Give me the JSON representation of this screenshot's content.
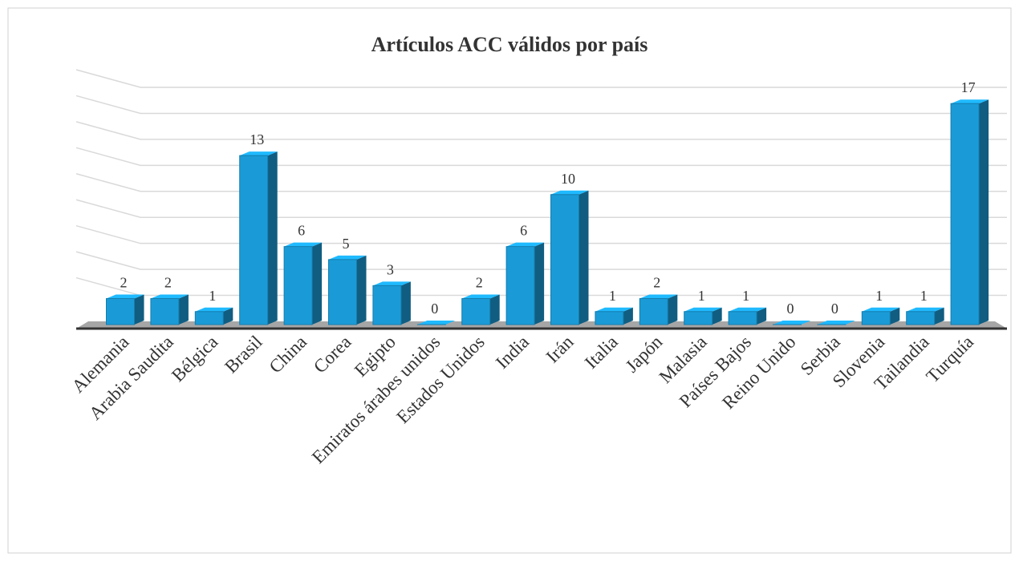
{
  "chart_data": {
    "type": "bar3d",
    "title": "Artículos ACC válidos por país",
    "categories": [
      "Alemania",
      "Arabia Saudita",
      "Bélgica",
      "Brasil",
      "China",
      "Corea",
      "Egipto",
      "Emiratos árabes unidos",
      "Estados Unidos",
      "India",
      "Irán",
      "Italia",
      "Japón",
      "Malasia",
      "Países Bajos",
      "Reino Unido",
      "Serbia",
      "Slovenia",
      "Tailandia",
      "Turquía"
    ],
    "values": [
      2,
      2,
      1,
      13,
      6,
      5,
      3,
      0,
      2,
      6,
      10,
      1,
      2,
      1,
      1,
      0,
      0,
      1,
      1,
      17
    ],
    "color": "#1a9bd7",
    "ylim": [
      0,
      18
    ],
    "yticks": [
      0,
      2,
      4,
      6,
      8,
      10,
      12,
      14,
      16,
      18
    ],
    "grid": true
  }
}
